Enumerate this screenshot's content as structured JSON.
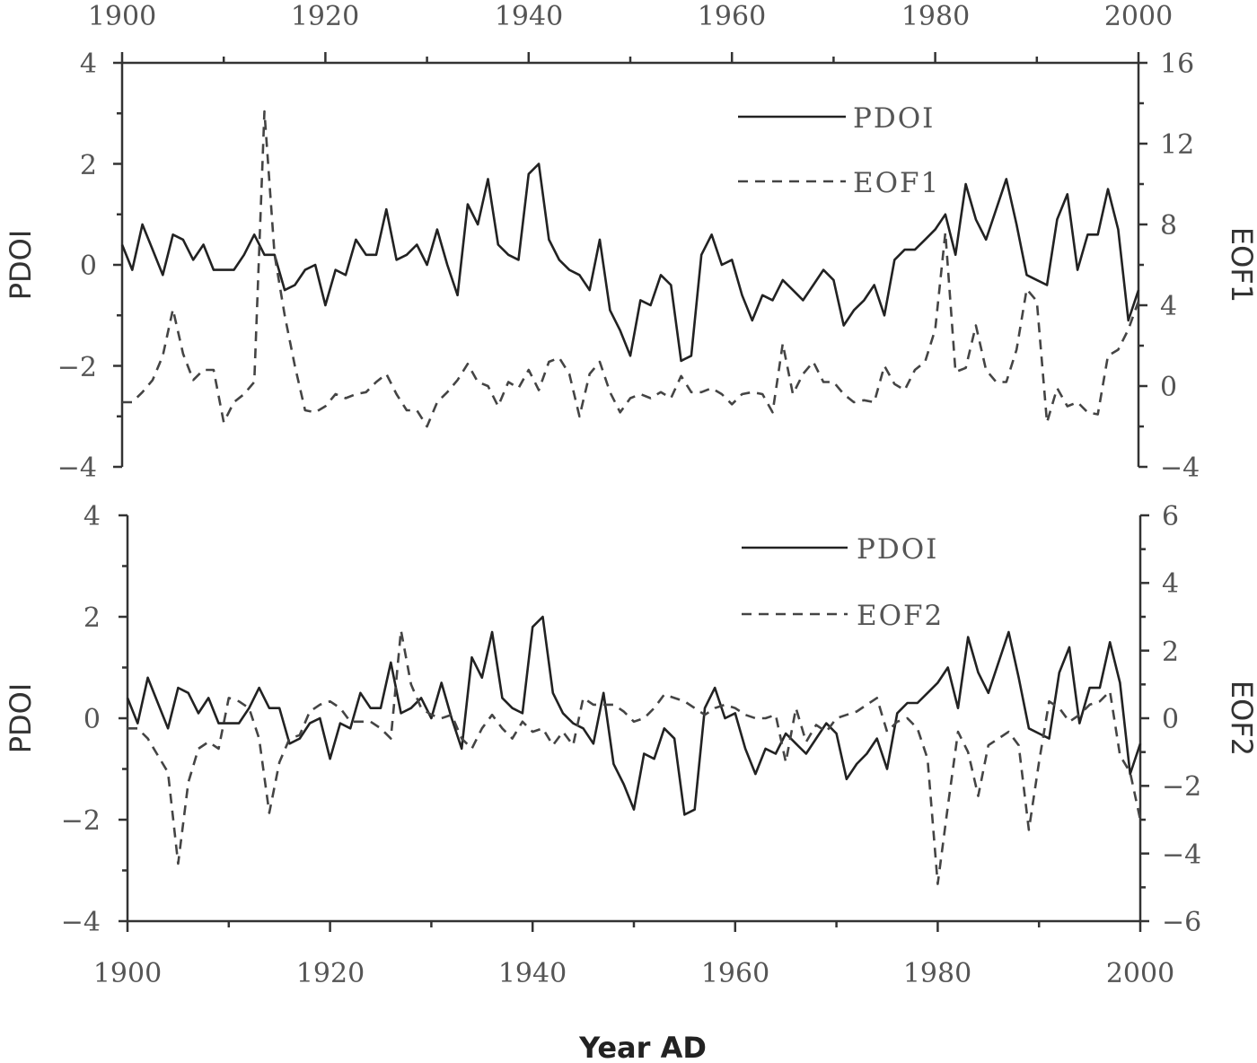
{
  "chart_data": [
    {
      "type": "line",
      "x_range": [
        1900,
        2000
      ],
      "x_ticks": [
        "1900",
        "1920",
        "1940",
        "1960",
        "1980",
        "2000"
      ],
      "x_ticks_position": "top",
      "left_axis": {
        "label": "PDOI",
        "ylim": [
          -4,
          4
        ],
        "ticks": [
          "4",
          "2",
          "0",
          "−2",
          "−4"
        ]
      },
      "right_axis": {
        "label": "EOF1",
        "ylim": [
          -4,
          16
        ],
        "ticks": [
          "16",
          "12",
          "8",
          "4",
          "0",
          "−4"
        ]
      },
      "legend": {
        "position": "top-right",
        "entries": [
          "PDOI",
          "EOF1"
        ]
      },
      "series": [
        {
          "name": "PDOI",
          "style": "solid",
          "axis": "left",
          "x": [
            1900,
            1901,
            1902,
            1903,
            1904,
            1905,
            1906,
            1907,
            1908,
            1909,
            1910,
            1911,
            1912,
            1913,
            1914,
            1915,
            1916,
            1917,
            1918,
            1919,
            1920,
            1921,
            1922,
            1923,
            1924,
            1925,
            1926,
            1927,
            1928,
            1929,
            1930,
            1931,
            1932,
            1933,
            1934,
            1935,
            1936,
            1937,
            1938,
            1939,
            1940,
            1941,
            1942,
            1943,
            1944,
            1945,
            1946,
            1947,
            1948,
            1949,
            1950,
            1951,
            1952,
            1953,
            1954,
            1955,
            1956,
            1957,
            1958,
            1959,
            1960,
            1961,
            1962,
            1963,
            1964,
            1965,
            1966,
            1967,
            1968,
            1969,
            1970,
            1971,
            1972,
            1973,
            1974,
            1975,
            1976,
            1977,
            1978,
            1979,
            1980,
            1981,
            1982,
            1983,
            1984,
            1985,
            1986,
            1987,
            1988,
            1989,
            1990,
            1991,
            1992,
            1993,
            1994,
            1995,
            1996,
            1997,
            1998,
            1999,
            2000
          ],
          "y": [
            0.4,
            -0.1,
            0.8,
            0.3,
            -0.2,
            0.6,
            0.5,
            0.1,
            0.4,
            -0.1,
            -0.1,
            -0.1,
            0.2,
            0.6,
            0.2,
            0.2,
            -0.5,
            -0.4,
            -0.1,
            0.0,
            -0.8,
            -0.1,
            -0.2,
            0.5,
            0.2,
            0.2,
            1.1,
            0.1,
            0.2,
            0.4,
            0.0,
            0.7,
            0.0,
            -0.6,
            1.2,
            0.8,
            1.7,
            0.4,
            0.2,
            0.1,
            1.8,
            2.0,
            0.5,
            0.1,
            -0.1,
            -0.2,
            -0.5,
            0.5,
            -0.9,
            -1.3,
            -1.8,
            -0.7,
            -0.8,
            -0.2,
            -0.4,
            -1.9,
            -1.8,
            0.2,
            0.6,
            0.0,
            0.1,
            -0.6,
            -1.1,
            -0.6,
            -0.7,
            -0.3,
            -0.5,
            -0.7,
            -0.4,
            -0.1,
            -0.3,
            -1.2,
            -0.9,
            -0.7,
            -0.4,
            -1.0,
            0.1,
            0.3,
            0.3,
            0.5,
            0.7,
            1.0,
            0.2,
            1.6,
            0.9,
            0.5,
            1.1,
            1.7,
            0.8,
            -0.2,
            -0.3,
            -0.4,
            0.9,
            1.4,
            -0.1,
            0.6,
            0.6,
            1.5,
            0.7,
            -1.1,
            -0.5
          ]
        },
        {
          "name": "EOF1",
          "style": "dashed",
          "axis": "right",
          "x": [
            1900,
            1901,
            1902,
            1903,
            1904,
            1905,
            1906,
            1907,
            1908,
            1909,
            1910,
            1911,
            1912,
            1913,
            1914,
            1915,
            1916,
            1917,
            1918,
            1919,
            1920,
            1921,
            1922,
            1923,
            1924,
            1925,
            1926,
            1927,
            1928,
            1929,
            1930,
            1931,
            1932,
            1933,
            1934,
            1935,
            1936,
            1937,
            1938,
            1939,
            1940,
            1941,
            1942,
            1943,
            1944,
            1945,
            1946,
            1947,
            1948,
            1949,
            1950,
            1951,
            1952,
            1953,
            1954,
            1955,
            1956,
            1957,
            1958,
            1959,
            1960,
            1961,
            1962,
            1963,
            1964,
            1965,
            1966,
            1967,
            1968,
            1969,
            1970,
            1971,
            1972,
            1973,
            1974,
            1975,
            1976,
            1977,
            1978,
            1979,
            1980,
            1981,
            1982,
            1983,
            1984,
            1985,
            1986,
            1987,
            1988,
            1989,
            1990,
            1991,
            1992,
            1993,
            1994,
            1995,
            1996,
            1997,
            1998,
            1999,
            2000
          ],
          "y": [
            -0.8,
            -0.8,
            -0.3,
            0.3,
            1.5,
            3.8,
            1.6,
            0.3,
            0.8,
            0.8,
            -1.8,
            -0.8,
            -0.4,
            0.2,
            13.6,
            6.5,
            3.5,
            1.0,
            -1.2,
            -1.3,
            -1.0,
            -0.4,
            -0.6,
            -0.4,
            -0.3,
            0.2,
            0.6,
            -0.4,
            -1.2,
            -1.2,
            -2.0,
            -0.8,
            -0.3,
            0.3,
            1.1,
            0.2,
            0.0,
            -1.0,
            0.2,
            -0.1,
            0.8,
            -0.2,
            1.2,
            1.4,
            0.6,
            -1.5,
            0.6,
            1.2,
            -0.3,
            -1.3,
            -0.6,
            -0.4,
            -0.6,
            -0.3,
            -0.6,
            0.5,
            -0.3,
            -0.3,
            -0.1,
            -0.4,
            -0.9,
            -0.4,
            -0.3,
            -0.4,
            -1.3,
            2.1,
            -0.4,
            0.6,
            1.2,
            0.2,
            0.2,
            -0.4,
            -0.8,
            -0.7,
            -0.8,
            1.0,
            0.1,
            -0.2,
            0.8,
            1.2,
            2.8,
            7.6,
            0.7,
            0.9,
            3.0,
            0.8,
            0.2,
            0.2,
            1.8,
            4.8,
            4.2,
            -1.8,
            -0.1,
            -1.0,
            -0.8,
            -1.3,
            -1.4,
            1.5,
            1.8,
            2.8,
            4.2
          ]
        }
      ]
    },
    {
      "type": "line",
      "x_range": [
        1900,
        2000
      ],
      "x_ticks": [
        "1900",
        "1920",
        "1940",
        "1960",
        "1980",
        "2000"
      ],
      "x_ticks_position": "bottom",
      "xlabel": "Year AD",
      "left_axis": {
        "label": "PDOI",
        "ylim": [
          -4,
          4
        ],
        "ticks": [
          "4",
          "2",
          "0",
          "−2",
          "−4"
        ]
      },
      "right_axis": {
        "label": "EOF2",
        "ylim": [
          -6,
          6
        ],
        "ticks": [
          "6",
          "4",
          "2",
          "0",
          "−2",
          "−4",
          "−6"
        ]
      },
      "legend": {
        "position": "top-right",
        "entries": [
          "PDOI",
          "EOF2"
        ]
      },
      "series": [
        {
          "name": "PDOI",
          "style": "solid",
          "axis": "left",
          "x": [
            1900,
            1901,
            1902,
            1903,
            1904,
            1905,
            1906,
            1907,
            1908,
            1909,
            1910,
            1911,
            1912,
            1913,
            1914,
            1915,
            1916,
            1917,
            1918,
            1919,
            1920,
            1921,
            1922,
            1923,
            1924,
            1925,
            1926,
            1927,
            1928,
            1929,
            1930,
            1931,
            1932,
            1933,
            1934,
            1935,
            1936,
            1937,
            1938,
            1939,
            1940,
            1941,
            1942,
            1943,
            1944,
            1945,
            1946,
            1947,
            1948,
            1949,
            1950,
            1951,
            1952,
            1953,
            1954,
            1955,
            1956,
            1957,
            1958,
            1959,
            1960,
            1961,
            1962,
            1963,
            1964,
            1965,
            1966,
            1967,
            1968,
            1969,
            1970,
            1971,
            1972,
            1973,
            1974,
            1975,
            1976,
            1977,
            1978,
            1979,
            1980,
            1981,
            1982,
            1983,
            1984,
            1985,
            1986,
            1987,
            1988,
            1989,
            1990,
            1991,
            1992,
            1993,
            1994,
            1995,
            1996,
            1997,
            1998,
            1999,
            2000
          ],
          "y": [
            0.4,
            -0.1,
            0.8,
            0.3,
            -0.2,
            0.6,
            0.5,
            0.1,
            0.4,
            -0.1,
            -0.1,
            -0.1,
            0.2,
            0.6,
            0.2,
            0.2,
            -0.5,
            -0.4,
            -0.1,
            0.0,
            -0.8,
            -0.1,
            -0.2,
            0.5,
            0.2,
            0.2,
            1.1,
            0.1,
            0.2,
            0.4,
            0.0,
            0.7,
            0.0,
            -0.6,
            1.2,
            0.8,
            1.7,
            0.4,
            0.2,
            0.1,
            1.8,
            2.0,
            0.5,
            0.1,
            -0.1,
            -0.2,
            -0.5,
            0.5,
            -0.9,
            -1.3,
            -1.8,
            -0.7,
            -0.8,
            -0.2,
            -0.4,
            -1.9,
            -1.8,
            0.2,
            0.6,
            0.0,
            0.1,
            -0.6,
            -1.1,
            -0.6,
            -0.7,
            -0.3,
            -0.5,
            -0.7,
            -0.4,
            -0.1,
            -0.3,
            -1.2,
            -0.9,
            -0.7,
            -0.4,
            -1.0,
            0.1,
            0.3,
            0.3,
            0.5,
            0.7,
            1.0,
            0.2,
            1.6,
            0.9,
            0.5,
            1.1,
            1.7,
            0.8,
            -0.2,
            -0.3,
            -0.4,
            0.9,
            1.4,
            -0.1,
            0.6,
            0.6,
            1.5,
            0.7,
            -1.1,
            -0.5
          ]
        },
        {
          "name": "EOF2",
          "style": "dashed",
          "axis": "right",
          "x": [
            1900,
            1901,
            1902,
            1903,
            1904,
            1905,
            1906,
            1907,
            1908,
            1909,
            1910,
            1911,
            1912,
            1913,
            1914,
            1915,
            1916,
            1917,
            1918,
            1919,
            1920,
            1921,
            1922,
            1923,
            1924,
            1925,
            1926,
            1927,
            1928,
            1929,
            1930,
            1931,
            1932,
            1933,
            1934,
            1935,
            1936,
            1937,
            1938,
            1939,
            1940,
            1941,
            1942,
            1943,
            1944,
            1945,
            1946,
            1947,
            1948,
            1949,
            1950,
            1951,
            1952,
            1953,
            1954,
            1955,
            1956,
            1957,
            1958,
            1959,
            1960,
            1961,
            1962,
            1963,
            1964,
            1965,
            1966,
            1967,
            1968,
            1969,
            1970,
            1971,
            1972,
            1973,
            1974,
            1975,
            1976,
            1977,
            1978,
            1979,
            1980,
            1981,
            1982,
            1983,
            1984,
            1985,
            1986,
            1987,
            1988,
            1989,
            1990,
            1991,
            1992,
            1993,
            1994,
            1995,
            1996,
            1997,
            1998,
            1999,
            2000
          ],
          "y": [
            -0.3,
            -0.3,
            -0.6,
            -1.1,
            -1.6,
            -4.3,
            -1.9,
            -0.9,
            -0.7,
            -0.9,
            0.6,
            0.5,
            0.3,
            -0.6,
            -2.8,
            -1.3,
            -0.6,
            -0.5,
            0.2,
            0.4,
            0.5,
            0.3,
            -0.1,
            -0.1,
            -0.1,
            -0.3,
            -0.6,
            2.6,
            1.0,
            0.3,
            0.1,
            0.0,
            0.1,
            -0.6,
            -0.9,
            -0.3,
            0.1,
            -0.3,
            -0.6,
            -0.1,
            -0.4,
            -0.3,
            -0.8,
            -0.4,
            -0.8,
            0.6,
            0.4,
            0.4,
            0.4,
            0.2,
            -0.1,
            0.0,
            0.3,
            0.7,
            0.6,
            0.5,
            0.3,
            0.1,
            0.3,
            0.4,
            0.3,
            0.1,
            0.0,
            0.0,
            0.1,
            -1.3,
            0.3,
            -0.7,
            -0.2,
            -0.4,
            0.0,
            0.1,
            0.2,
            0.4,
            0.6,
            -0.4,
            -0.1,
            0.0,
            -0.3,
            -1.2,
            -4.9,
            -2.6,
            -0.4,
            -1.0,
            -2.3,
            -0.8,
            -0.6,
            -0.4,
            -0.8,
            -3.3,
            -1.3,
            0.5,
            0.3,
            -0.1,
            0.1,
            0.4,
            0.5,
            0.8,
            -1.1,
            -1.6,
            -3.0
          ]
        }
      ]
    }
  ],
  "axes_text": {
    "top_ticks": [
      "1900",
      "1920",
      "1940",
      "1960",
      "1980",
      "2000"
    ],
    "bottom_ticks": [
      "1900",
      "1920",
      "1940",
      "1960",
      "1980",
      "2000"
    ],
    "pdoi_ticks": [
      "4",
      "2",
      "0",
      "−2",
      "−4"
    ],
    "eof1_ticks": [
      "16",
      "12",
      "8",
      "4",
      "0",
      "−4"
    ],
    "eof2_ticks": [
      "6",
      "4",
      "2",
      "0",
      "−2",
      "−4",
      "−6"
    ],
    "top_left_label": "PDOI",
    "top_right_label": "EOF1",
    "bottom_left_label": "PDOI",
    "bottom_right_label": "EOF2",
    "xlabel": "Year AD"
  },
  "legend": {
    "top": [
      "PDOI",
      "EOF1"
    ],
    "bottom": [
      "PDOI",
      "EOF2"
    ]
  }
}
